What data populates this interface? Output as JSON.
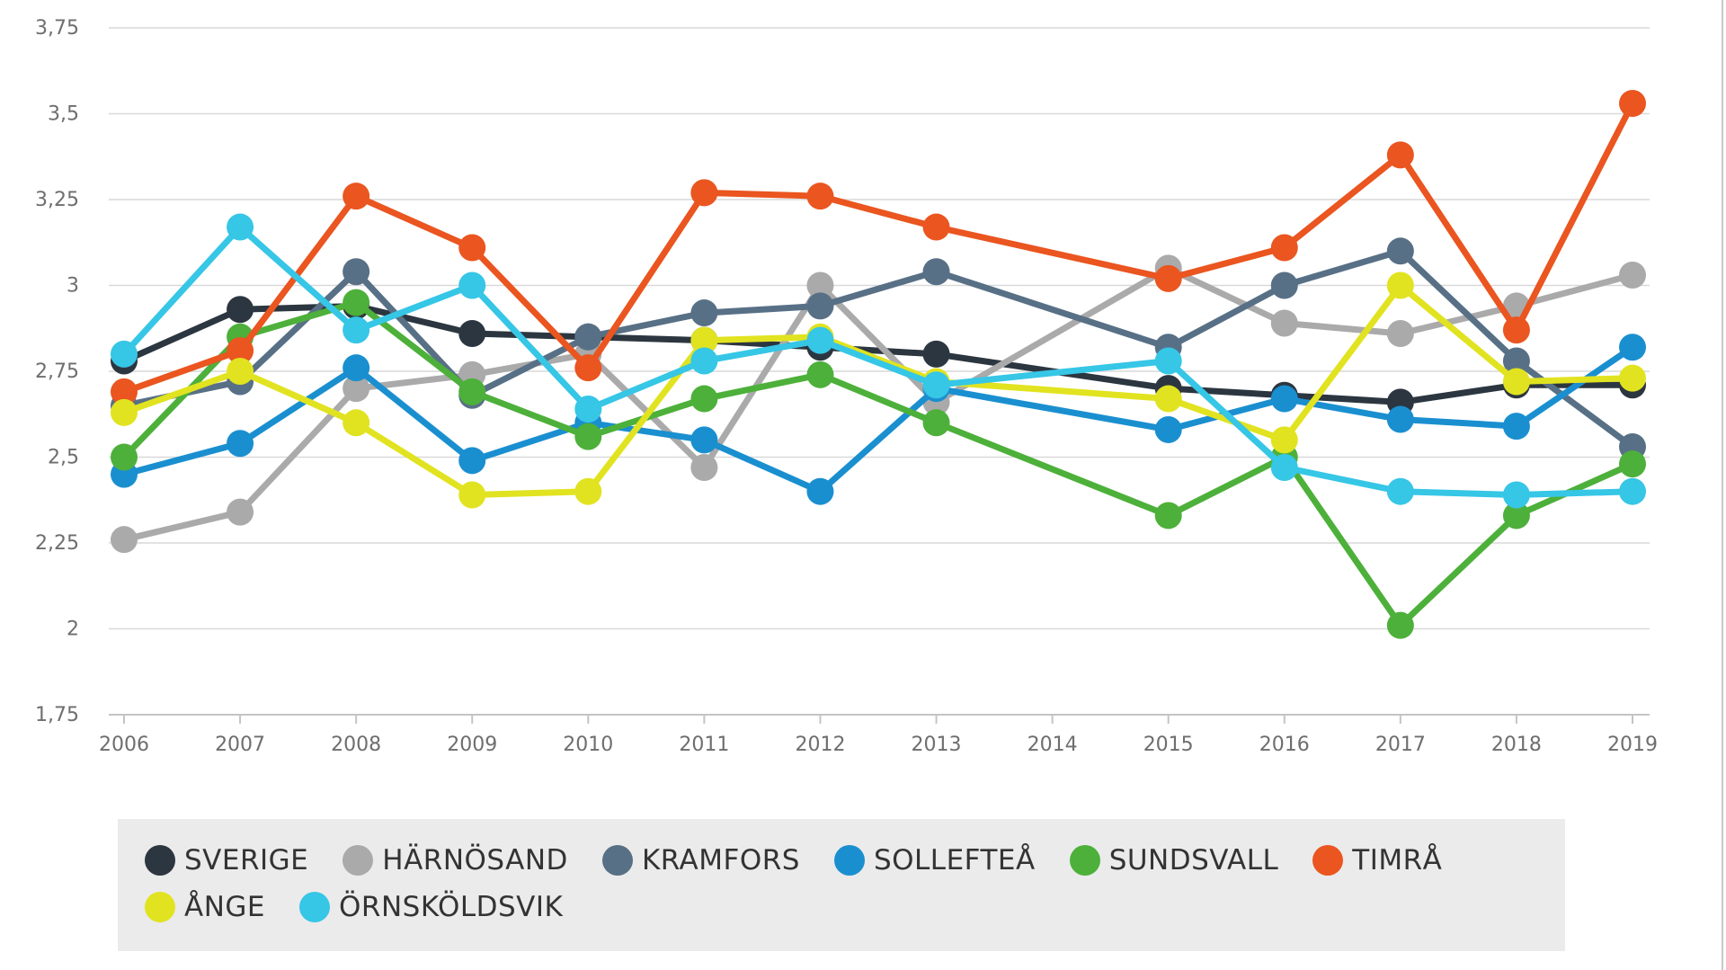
{
  "chart_data": {
    "type": "line",
    "title": "",
    "xlabel": "",
    "ylabel": "",
    "x": [
      "2006",
      "2007",
      "2008",
      "2009",
      "2010",
      "2011",
      "2012",
      "2013",
      "2014",
      "2015",
      "2016",
      "2017",
      "2018",
      "2019"
    ],
    "ylim": [
      1.75,
      3.75
    ],
    "yticks": [
      1.75,
      2,
      2.25,
      2.5,
      2.75,
      3,
      3.25,
      3.5,
      3.75
    ],
    "ytick_labels": [
      "1,75",
      "2",
      "2,25",
      "2,5",
      "2,75",
      "3",
      "3,25",
      "3,5",
      "3,75"
    ],
    "grid": true,
    "legend_position": "bottom",
    "series": [
      {
        "name": "SVERIGE",
        "color": "#2c3640",
        "values": [
          2.78,
          2.93,
          2.94,
          2.86,
          2.85,
          2.84,
          2.82,
          2.8,
          null,
          2.7,
          2.68,
          2.66,
          2.71,
          2.71
        ]
      },
      {
        "name": "HÄRNÖSAND",
        "color": "#aaaaaa",
        "values": [
          2.26,
          2.34,
          2.7,
          2.74,
          2.8,
          2.47,
          3.0,
          2.66,
          null,
          3.05,
          2.89,
          2.86,
          2.94,
          3.03
        ]
      },
      {
        "name": "KRAMFORS",
        "color": "#587086",
        "values": [
          2.65,
          2.72,
          3.04,
          2.68,
          2.85,
          2.92,
          2.94,
          3.04,
          null,
          2.82,
          3.0,
          3.1,
          2.78,
          2.53
        ]
      },
      {
        "name": "SOLLEFTEÅ",
        "color": "#1a8fd0",
        "values": [
          2.45,
          2.54,
          2.76,
          2.49,
          2.6,
          2.55,
          2.4,
          2.7,
          null,
          2.58,
          2.67,
          2.61,
          2.59,
          2.82
        ]
      },
      {
        "name": "SUNDSVALL",
        "color": "#4db03a",
        "values": [
          2.5,
          2.85,
          2.95,
          2.69,
          2.56,
          2.67,
          2.74,
          2.6,
          null,
          2.33,
          2.5,
          2.01,
          2.33,
          2.48
        ]
      },
      {
        "name": "TIMRÅ",
        "color": "#ea5520",
        "values": [
          2.69,
          2.81,
          3.26,
          3.11,
          2.76,
          3.27,
          3.26,
          3.17,
          null,
          3.02,
          3.11,
          3.38,
          2.87,
          3.53
        ]
      },
      {
        "name": "ÅNGE",
        "color": "#e1e320",
        "values": [
          2.63,
          2.75,
          2.6,
          2.39,
          2.4,
          2.84,
          2.85,
          2.72,
          null,
          2.67,
          2.55,
          3.0,
          2.72,
          2.73
        ]
      },
      {
        "name": "ÖRNSKÖLDSVIK",
        "color": "#36c6e6",
        "values": [
          2.8,
          3.17,
          2.87,
          3.0,
          2.64,
          2.78,
          2.84,
          2.71,
          null,
          2.78,
          2.47,
          2.4,
          2.39,
          2.4
        ]
      }
    ]
  }
}
